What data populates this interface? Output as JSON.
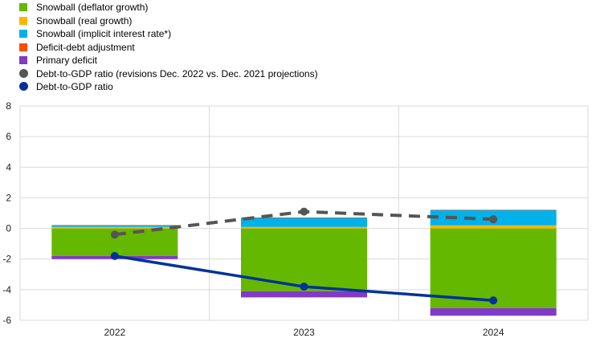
{
  "colors": {
    "deflator": "#65b800",
    "real": "#ffb400",
    "interest": "#00b1ea",
    "ddadj": "#ff4b00",
    "primary": "#8139c6",
    "revisions": "#555555",
    "debt": "#003299",
    "grid": "#d9d9d9"
  },
  "legend": [
    {
      "label": "Snowball (deflator growth)",
      "color_key": "deflator",
      "shape": "square"
    },
    {
      "label": "Snowball (real growth)",
      "color_key": "real",
      "shape": "square"
    },
    {
      "label": "Snowball (implicit interest rate*)",
      "color_key": "interest",
      "shape": "square"
    },
    {
      "label": "Deficit-debt adjustment",
      "color_key": "ddadj",
      "shape": "square"
    },
    {
      "label": "Primary deficit",
      "color_key": "primary",
      "shape": "square"
    },
    {
      "label": "Debt-to-GDP ratio (revisions Dec. 2022 vs. Dec. 2021 projections)",
      "color_key": "revisions",
      "shape": "circle"
    },
    {
      "label": "Debt-to-GDP ratio",
      "color_key": "debt",
      "shape": "circle"
    }
  ],
  "chart_data": {
    "type": "bar",
    "stacked": true,
    "categories": [
      "2022",
      "2023",
      "2024"
    ],
    "series": [
      {
        "name": "Snowball (deflator growth)",
        "color_key": "deflator",
        "values": [
          -1.8,
          -4.1,
          -5.2
        ]
      },
      {
        "name": "Snowball (real growth)",
        "color_key": "real",
        "values": [
          0.1,
          0.1,
          0.2
        ]
      },
      {
        "name": "Snowball (implicit interest rate*)",
        "color_key": "interest",
        "values": [
          0.1,
          0.6,
          1.0
        ]
      },
      {
        "name": "Deficit-debt adjustment",
        "color_key": "ddadj",
        "values": [
          0.02,
          0.02,
          0.02
        ]
      },
      {
        "name": "Primary deficit",
        "color_key": "primary",
        "values": [
          -0.2,
          -0.4,
          -0.5
        ]
      }
    ],
    "lines": [
      {
        "name": "Debt-to-GDP ratio (revisions Dec. 2022 vs. Dec. 2021 projections)",
        "color_key": "revisions",
        "style": "dashed",
        "values": [
          -0.4,
          1.1,
          0.6
        ]
      },
      {
        "name": "Debt-to-GDP ratio",
        "color_key": "debt",
        "style": "solid",
        "values": [
          -1.8,
          -3.8,
          -4.7
        ]
      }
    ],
    "ylim": [
      -6,
      8
    ],
    "yticks": [
      -6,
      -4,
      -2,
      0,
      2,
      4,
      6,
      8
    ],
    "xlabel": "",
    "ylabel": "",
    "grid": true,
    "legend_position": "top-left"
  }
}
